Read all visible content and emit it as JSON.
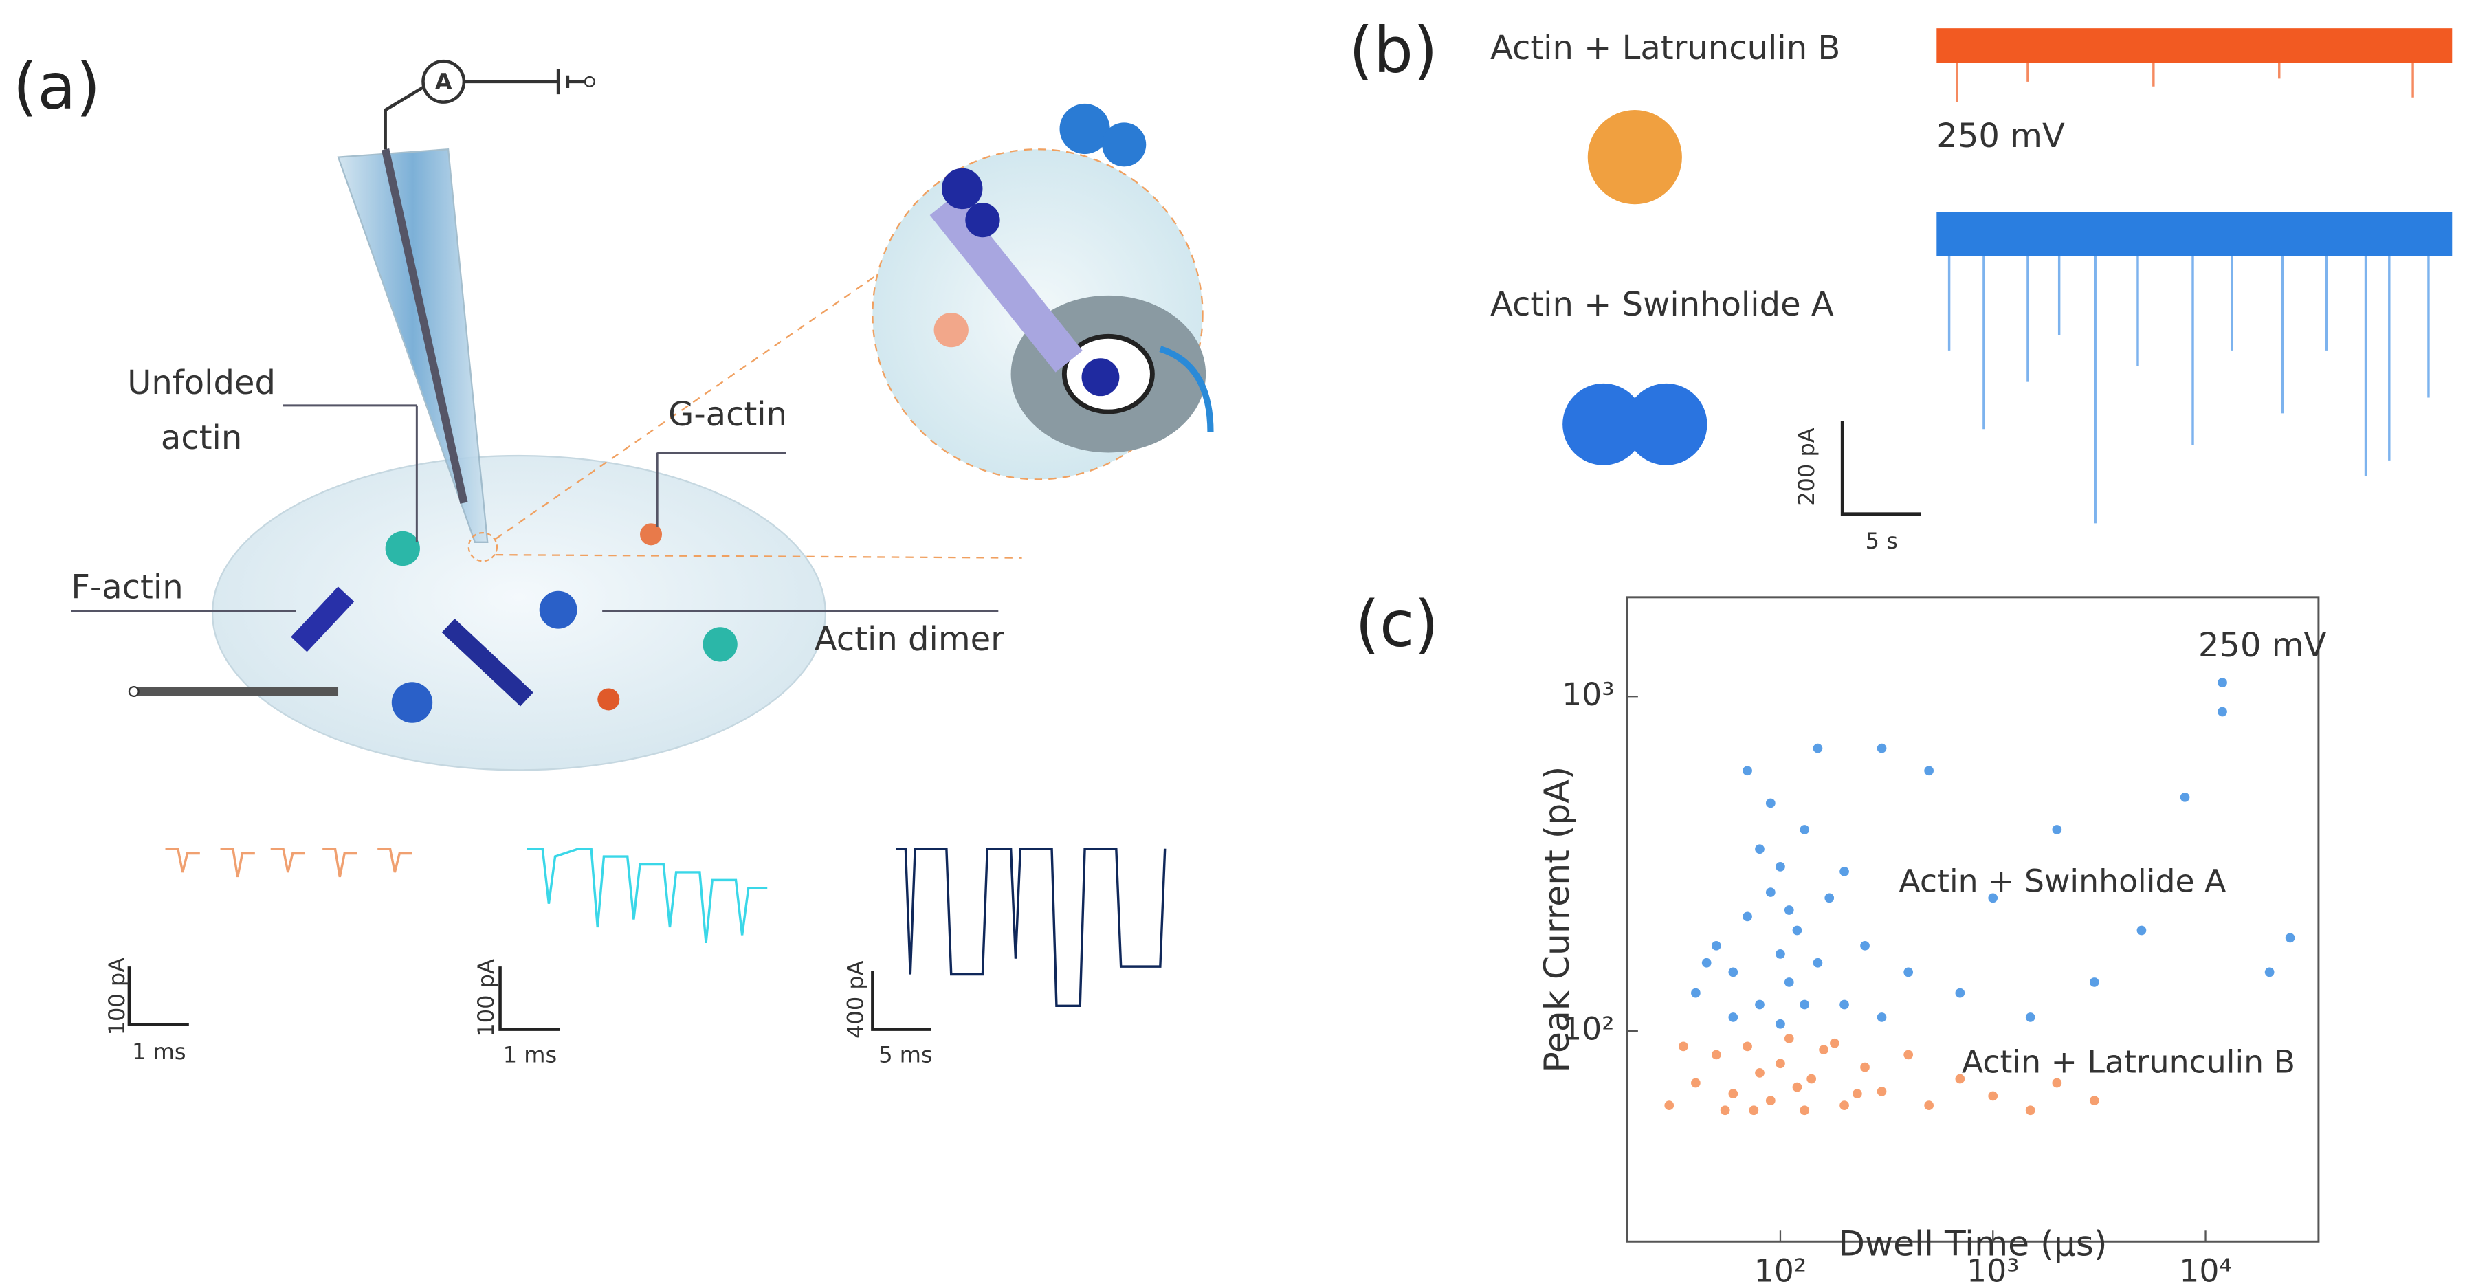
{
  "panel_a": {
    "label": "(a)",
    "ammeter": "A",
    "labels": {
      "unfolded": [
        "Unfolded",
        "actin"
      ],
      "g_actin": "G-actin",
      "f_actin": "F-actin",
      "dimer": "Actin dimer"
    },
    "scale_bars": [
      {
        "y": "100 pA",
        "x": "1 ms"
      },
      {
        "y": "100 pA",
        "x": "1 ms"
      },
      {
        "y": "400 pA",
        "x": "5 ms"
      }
    ]
  },
  "panel_b": {
    "label": "(b)",
    "latrunculin": "Actin + Latrunculin B",
    "voltage": "250 mV",
    "swinholide": "Actin + Swinholide A",
    "scale_y": "200 pA",
    "scale_x": "5 s"
  },
  "chart_data": {
    "type": "scatter",
    "label": "(c)",
    "xlabel": "Dwell Time (µs)",
    "ylabel": "Peak Current (pA)",
    "annotation": "250 mV",
    "log_x": true,
    "log_y": true,
    "xlim": [
      19,
      34000
    ],
    "ylim": [
      23.5,
      1980
    ],
    "xticks": [
      {
        "value": 100,
        "label": "10²"
      },
      {
        "value": 1000,
        "label": "10³"
      },
      {
        "value": 10000,
        "label": "10⁴"
      }
    ],
    "yticks": [
      {
        "value": 100,
        "label": "10²"
      },
      {
        "value": 1000,
        "label": "10³"
      }
    ],
    "series": [
      {
        "name": "Actin + Swinholide A",
        "color": "#2f86e0",
        "x": [
          40,
          50,
          60,
          70,
          80,
          90,
          100,
          100,
          110,
          120,
          130,
          150,
          170,
          200,
          250,
          300,
          400,
          500,
          700,
          1000,
          1500,
          2000,
          3000,
          5000,
          8000,
          12000,
          12000,
          20000,
          25000,
          70,
          150,
          300,
          100,
          60,
          90,
          130,
          110,
          80,
          45,
          200
        ],
        "values": [
          130,
          180,
          150,
          220,
          120,
          260,
          170,
          310,
          140,
          200,
          400,
          160,
          250,
          120,
          180,
          110,
          150,
          600,
          130,
          250,
          110,
          400,
          140,
          200,
          500,
          1100,
          900,
          150,
          190,
          600,
          700,
          700,
          105,
          110,
          480,
          120,
          230,
          350,
          160,
          300
        ]
      },
      {
        "name": "Actin + Latrunculin B",
        "color": "#f4874b",
        "x": [
          30,
          40,
          50,
          60,
          70,
          80,
          90,
          100,
          110,
          120,
          140,
          160,
          200,
          250,
          300,
          400,
          500,
          700,
          1000,
          1500,
          2000,
          3000,
          35,
          55,
          75,
          130,
          180,
          230
        ],
        "values": [
          60,
          70,
          85,
          65,
          90,
          75,
          62,
          80,
          95,
          68,
          72,
          88,
          60,
          78,
          66,
          85,
          60,
          72,
          64,
          58,
          70,
          62,
          90,
          58,
          58,
          58,
          92,
          65
        ]
      }
    ]
  }
}
